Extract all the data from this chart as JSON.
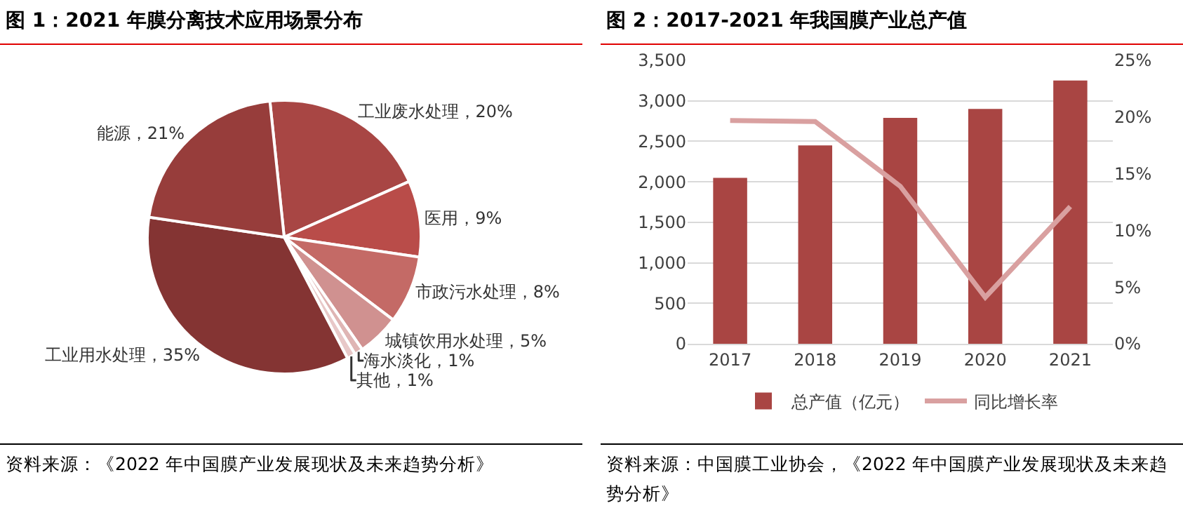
{
  "chart_data": [
    {
      "type": "pie",
      "title": "图 1：2021 年膜分离技术应用场景分布",
      "categories": [
        "工业废水处理",
        "医用",
        "市政污水处理",
        "城镇饮用水处理",
        "海水淡化",
        "其他",
        "工业用水处理",
        "能源"
      ],
      "values": [
        20,
        9,
        8,
        5,
        1,
        1,
        35,
        21
      ],
      "value_labels": [
        "20%",
        "9%",
        "8%",
        "5%",
        "1%",
        "1%",
        "35%",
        "21%"
      ],
      "colors": [
        "#a84644",
        "#b94c49",
        "#c46a66",
        "#d09190",
        "#dfb5b4",
        "#e8c8c8",
        "#843433",
        "#973d3b"
      ],
      "legend": false,
      "annotations": [
        "资料来源：《2022 年中国膜产业发展现状及未来趋势分析》"
      ]
    },
    {
      "type": "bar",
      "title": "图 2：2017-2021 年我国膜产业总产值",
      "categories": [
        "2017",
        "2018",
        "2019",
        "2020",
        "2021"
      ],
      "series": [
        {
          "name": "总产值（亿元）",
          "type": "bar",
          "color": "#a94543",
          "values": [
            2050,
            2450,
            2790,
            2900,
            3250
          ]
        },
        {
          "name": "同比增长率",
          "type": "line",
          "axis": "y2",
          "color": "#d9a0a0",
          "values": [
            19.7,
            19.6,
            13.9,
            4.1,
            12.1
          ]
        }
      ],
      "ylim": [
        0,
        3500
      ],
      "yticks": [
        0,
        {
          "value": 500,
          "label": "500"
        },
        {
          "value": 1000,
          "label": "1,000"
        },
        {
          "value": 1500,
          "label": "1,500"
        },
        {
          "value": 2000,
          "label": "2,000"
        },
        {
          "value": 2500,
          "label": "2,500"
        },
        {
          "value": 3000,
          "label": "3,000"
        },
        {
          "value": 3500,
          "label": "3,500"
        }
      ],
      "y2lim": [
        0,
        25
      ],
      "y2ticks": [
        {
          "value": 0,
          "label": "0%"
        },
        {
          "value": 5,
          "label": "5%"
        },
        {
          "value": 10,
          "label": "10%"
        },
        {
          "value": 15,
          "label": "15%"
        },
        {
          "value": 20,
          "label": "20%"
        },
        {
          "value": 25,
          "label": "25%"
        }
      ],
      "grid": "y",
      "legend": "bottom",
      "marker": "none",
      "line_style": "solid",
      "annotations": [
        "资料来源：中国膜工业协会，《2022 年中国膜产业发展现状及未来趋势分析》"
      ]
    }
  ]
}
